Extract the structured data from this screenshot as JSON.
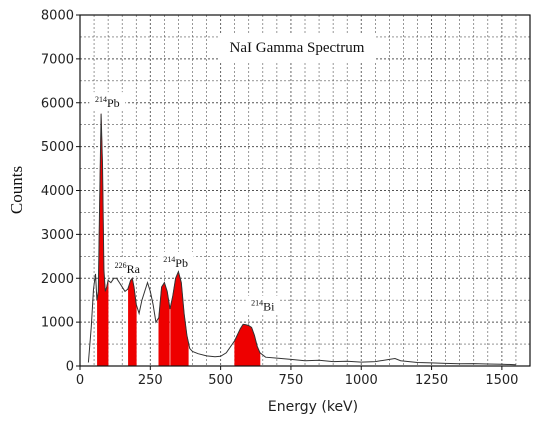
{
  "chart_data": {
    "type": "area",
    "title": "NaI Gamma Spectrum",
    "xlabel": "Energy (keV)",
    "ylabel": "Counts",
    "xlim": [
      0,
      1600
    ],
    "ylim": [
      0,
      8000
    ],
    "x_ticks": [
      0,
      250,
      500,
      750,
      1000,
      1250,
      1500
    ],
    "x_tick_labels": [
      "0",
      "250",
      "500",
      "750",
      "1000",
      "1250",
      "1500"
    ],
    "y_ticks": [
      0,
      1000,
      2000,
      3000,
      4000,
      5000,
      6000,
      7000,
      8000
    ],
    "y_tick_labels": [
      "0",
      "1000",
      "2000",
      "3000",
      "4000",
      "5000",
      "6000",
      "7000",
      "8000"
    ],
    "grid": true,
    "spectrum": {
      "x": [
        30,
        40,
        48,
        55,
        60,
        65,
        70,
        75,
        80,
        85,
        90,
        95,
        100,
        110,
        120,
        130,
        140,
        150,
        160,
        170,
        180,
        186,
        192,
        200,
        210,
        220,
        230,
        240,
        250,
        260,
        270,
        280,
        290,
        300,
        310,
        320,
        330,
        340,
        350,
        360,
        370,
        380,
        390,
        400,
        420,
        450,
        480,
        500,
        520,
        550,
        570,
        580,
        590,
        600,
        610,
        620,
        630,
        640,
        660,
        700,
        750,
        800,
        850,
        900,
        950,
        1000,
        1050,
        1100,
        1120,
        1140,
        1200,
        1250,
        1300,
        1350,
        1400,
        1450,
        1500,
        1550
      ],
      "y": [
        80,
        900,
        1750,
        2100,
        1500,
        1700,
        3800,
        5750,
        4600,
        2200,
        1700,
        1800,
        1950,
        1900,
        2000,
        2000,
        1900,
        1800,
        1700,
        1750,
        1950,
        2000,
        1800,
        1400,
        1200,
        1500,
        1700,
        1900,
        1700,
        1400,
        1000,
        1100,
        1800,
        1900,
        1700,
        1300,
        1600,
        2000,
        2150,
        1900,
        1200,
        700,
        400,
        330,
        280,
        230,
        210,
        220,
        300,
        580,
        850,
        950,
        940,
        920,
        880,
        700,
        450,
        300,
        200,
        180,
        150,
        120,
        130,
        100,
        110,
        90,
        100,
        150,
        170,
        120,
        80,
        70,
        60,
        50,
        55,
        45,
        40,
        30
      ]
    },
    "highlighted_peaks": [
      {
        "label_sup": "214",
        "label": "Pb",
        "x_range": [
          62,
          100
        ]
      },
      {
        "label_sup": "226",
        "label": "Ra",
        "x_range": [
          172,
          200
        ]
      },
      {
        "label_sup": "214",
        "label": "Pb",
        "x_range": [
          280,
          318
        ]
      },
      {
        "label_sup": "214",
        "label": "Pb",
        "x_range": [
          322,
          385
        ]
      },
      {
        "label_sup": "214",
        "label": "Bi",
        "x_range": [
          550,
          640
        ]
      }
    ],
    "highlight_color": "#ee0000",
    "line_color": "#333333",
    "grid_color": "#555555"
  }
}
